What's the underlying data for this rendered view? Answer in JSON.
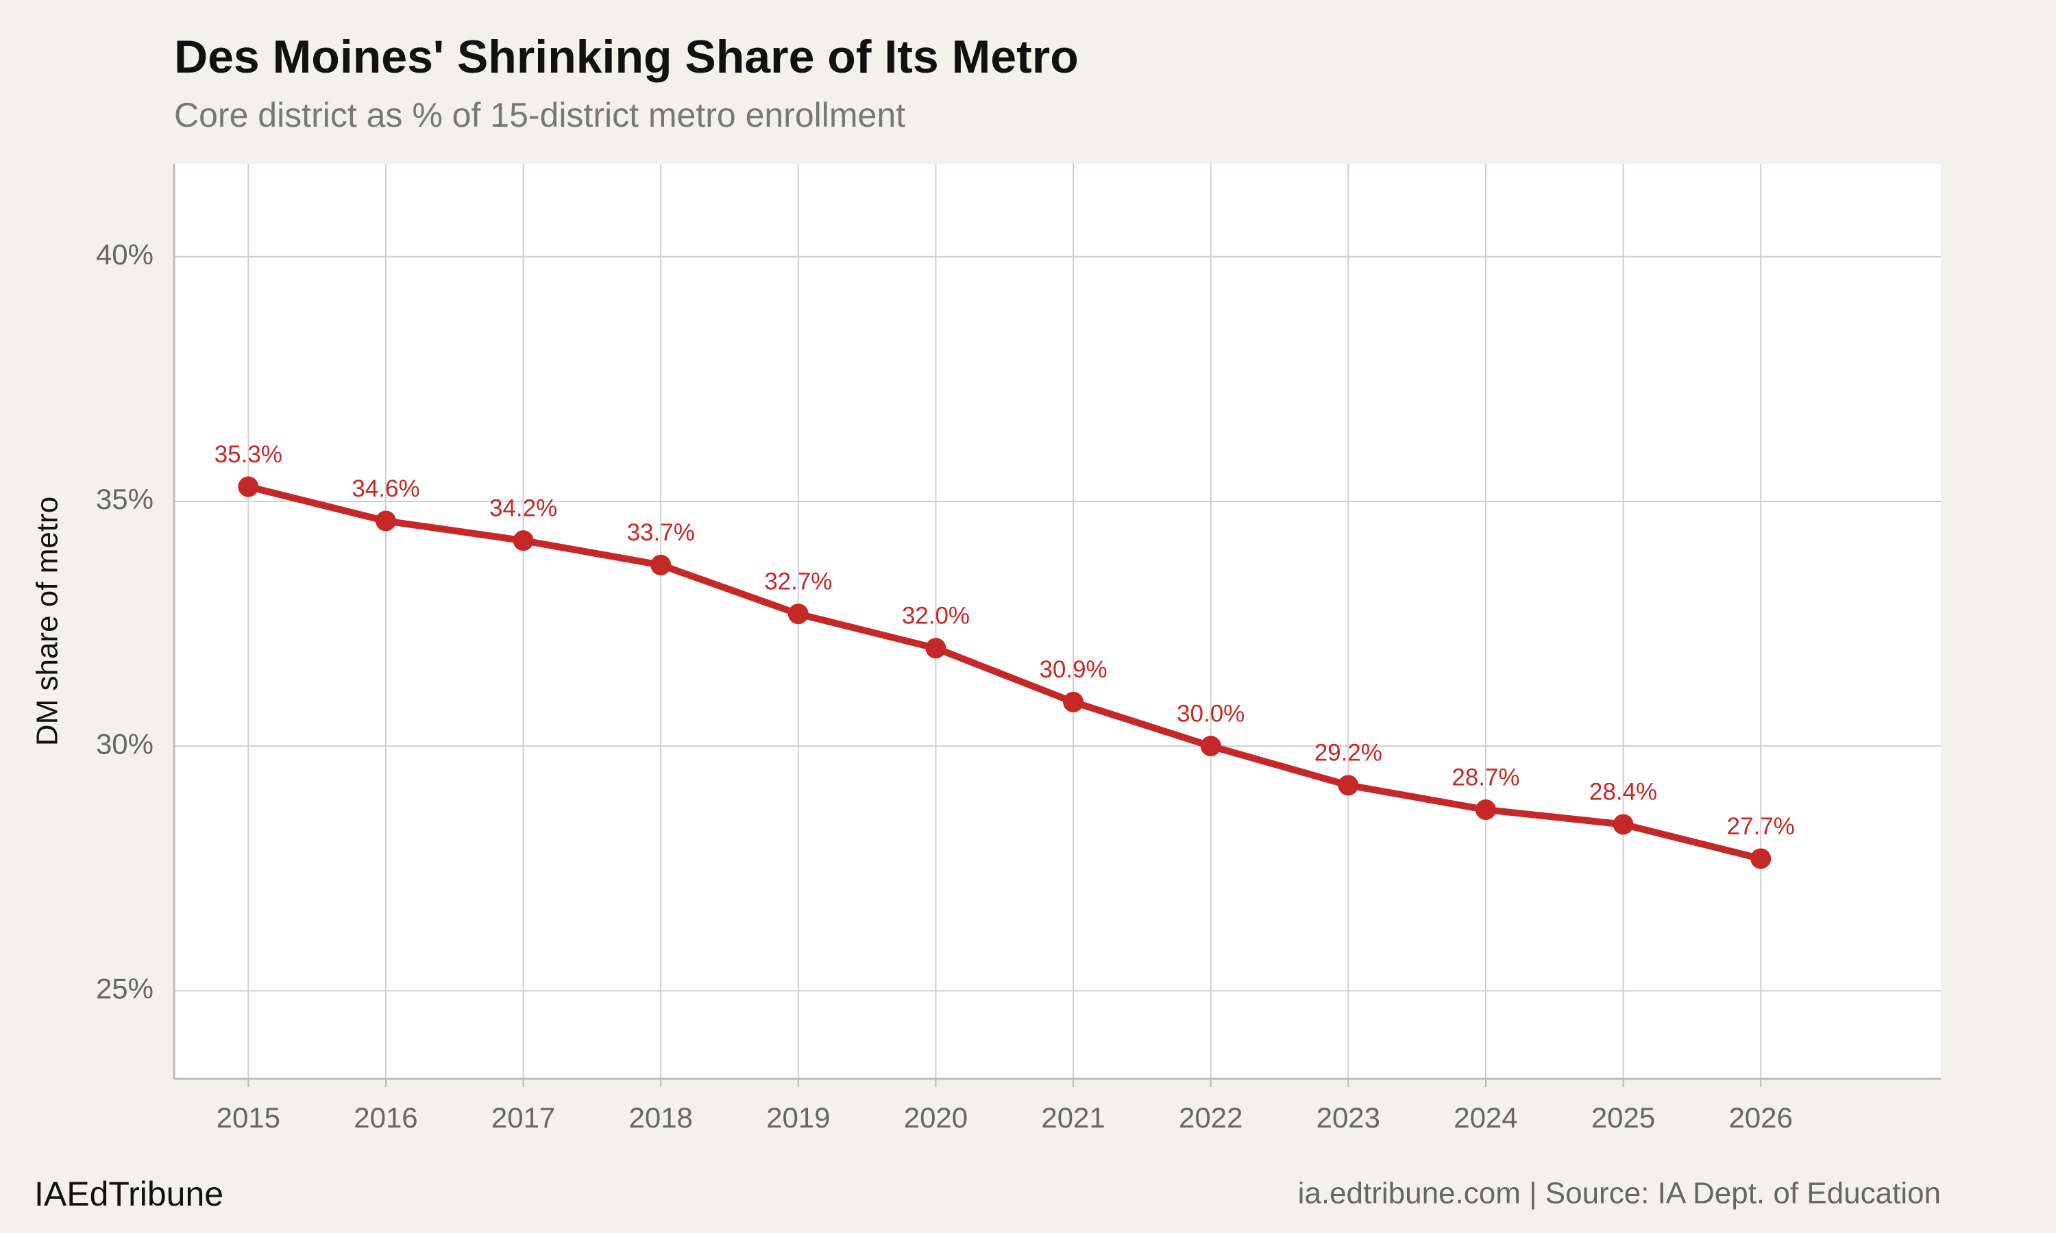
{
  "chart_data": {
    "type": "line",
    "title": "Des Moines' Shrinking Share of Its Metro",
    "subtitle": "Core district as % of 15-district metro enrollment",
    "y_label": "DM share of metro",
    "footer_left": "IAEdTribune",
    "footer_right": "ia.edtribune.com | Source: IA Dept. of Education",
    "x": [
      2015,
      2016,
      2017,
      2018,
      2019,
      2020,
      2021,
      2022,
      2023,
      2024,
      2025,
      2026
    ],
    "series": [
      {
        "color": "#c62828",
        "values": [
          35.3,
          34.6,
          34.2,
          33.7,
          32.7,
          32.0,
          30.9,
          30.0,
          29.2,
          28.7,
          28.4,
          27.7
        ],
        "value_labels": [
          "35.3%",
          "34.6%",
          "34.2%",
          "33.7%",
          "32.7%",
          "32.0%",
          "30.9%",
          "30.0%",
          "29.2%",
          "28.7%",
          "28.4%",
          "27.7%"
        ]
      }
    ],
    "xlim": [
      2014.46,
      2027.31
    ],
    "xticks": [
      2015,
      2016,
      2017,
      2018,
      2019,
      2020,
      2021,
      2022,
      2023,
      2024,
      2025,
      2026
    ],
    "ylim": [
      23.2,
      41.9
    ],
    "yticks": [
      {
        "value": 25,
        "label": "25%"
      },
      {
        "value": 30,
        "label": "30%"
      },
      {
        "value": 35,
        "label": "35%"
      },
      {
        "value": 40,
        "label": "40%"
      }
    ],
    "grid": true
  }
}
